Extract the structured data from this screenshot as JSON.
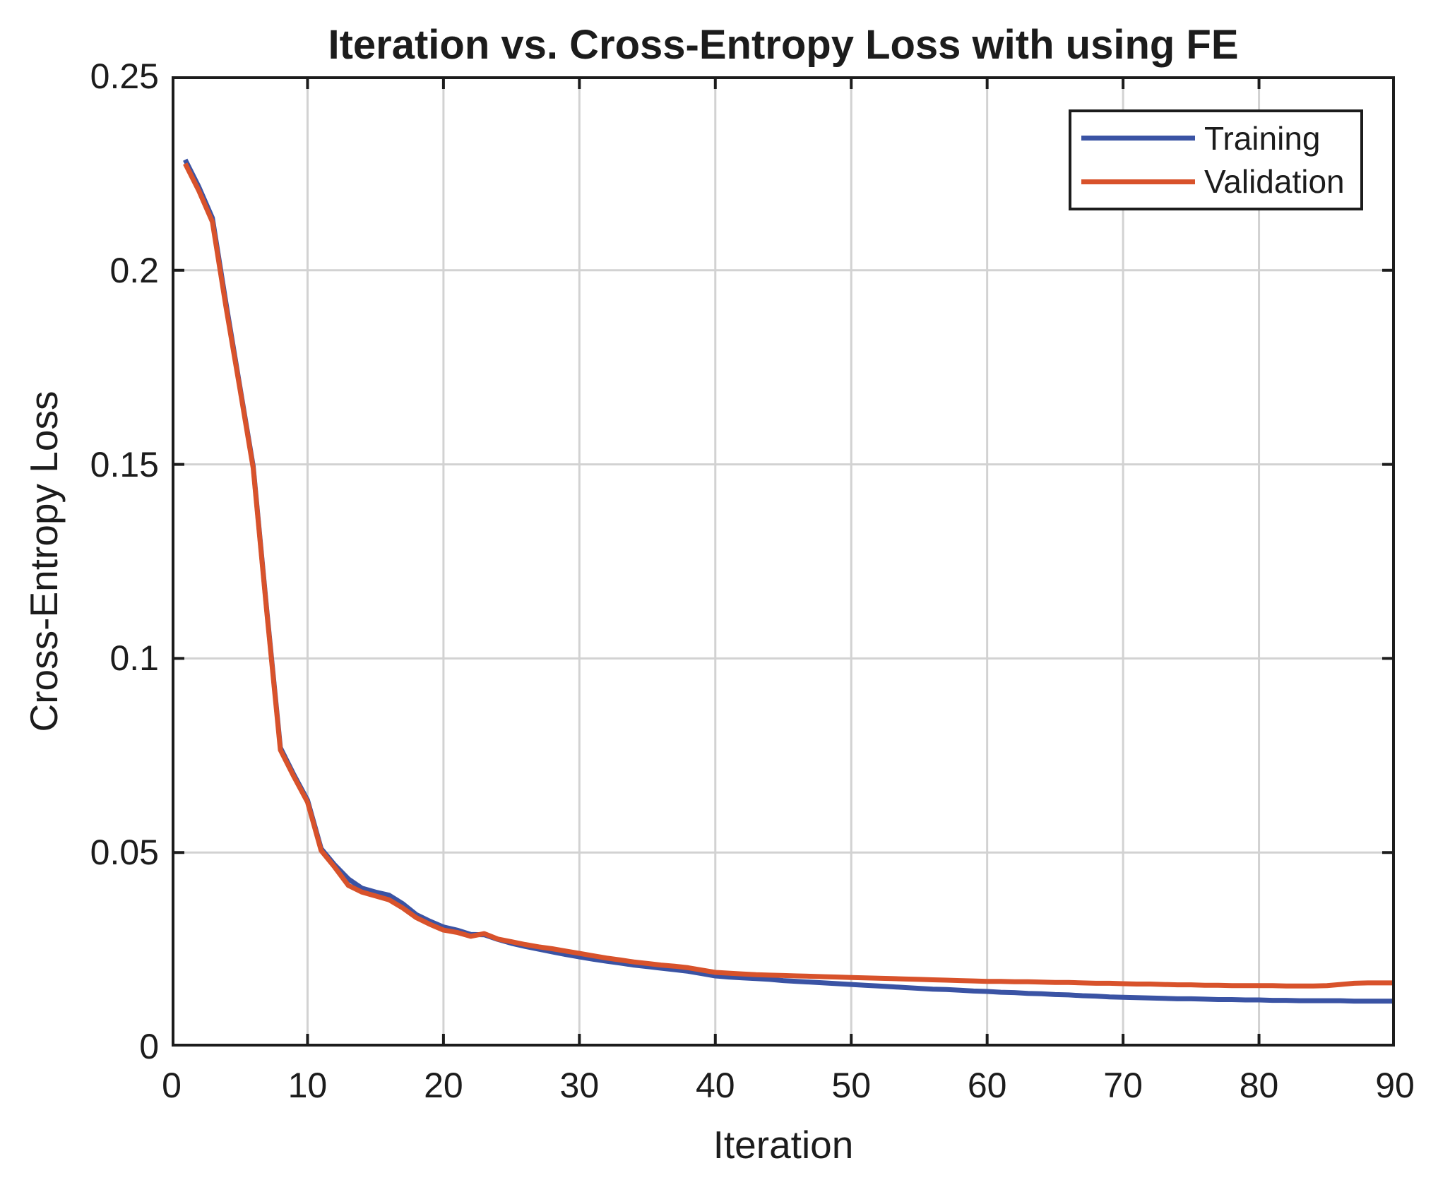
{
  "title": "Iteration vs. Cross-Entropy Loss with using FE",
  "legend": {
    "position": "top-right",
    "entries": [
      "Training",
      "Validation"
    ]
  },
  "chart_data": {
    "type": "line",
    "title": "Iteration vs. Cross-Entropy Loss with using FE",
    "xlabel": "Iteration",
    "ylabel": "Cross-Entropy Loss",
    "xlim": [
      0,
      90
    ],
    "ylim": [
      0,
      0.25
    ],
    "x_ticks": [
      0,
      10,
      20,
      30,
      40,
      50,
      60,
      70,
      80,
      90
    ],
    "x_tick_labels": [
      "0",
      "10",
      "20",
      "30",
      "40",
      "50",
      "60",
      "70",
      "80",
      "90"
    ],
    "y_ticks": [
      0,
      0.05,
      0.1,
      0.15,
      0.2,
      0.25
    ],
    "y_tick_labels": [
      "0",
      "0.05",
      "0.1",
      "0.15",
      "0.2",
      "0.25"
    ],
    "grid": true,
    "grid_color": "#d2d2d2",
    "axis_color": "#1c1c1c",
    "legend_position": "top-right",
    "series": [
      {
        "name": "Training",
        "color": "#3a53a4",
        "x": [
          1,
          2,
          3,
          4,
          5,
          6,
          7,
          8,
          9,
          10,
          11,
          12,
          13,
          14,
          15,
          16,
          17,
          18,
          19,
          20,
          21,
          22,
          23,
          24,
          25,
          26,
          27,
          28,
          29,
          30,
          31,
          32,
          33,
          34,
          35,
          36,
          37,
          38,
          39,
          40,
          41,
          42,
          43,
          44,
          45,
          46,
          47,
          48,
          49,
          50,
          51,
          52,
          53,
          54,
          55,
          56,
          57,
          58,
          59,
          60,
          61,
          62,
          63,
          64,
          65,
          66,
          67,
          68,
          69,
          70,
          71,
          72,
          73,
          74,
          75,
          76,
          77,
          78,
          79,
          80,
          81,
          82,
          83,
          84,
          85,
          86,
          87,
          88,
          89,
          90
        ],
        "y": [
          0.2285,
          0.2215,
          0.2135,
          0.1915,
          0.1705,
          0.1495,
          0.1125,
          0.077,
          0.07,
          0.0635,
          0.051,
          0.0468,
          0.0432,
          0.0408,
          0.0398,
          0.039,
          0.0368,
          0.034,
          0.0323,
          0.0308,
          0.03,
          0.0289,
          0.0288,
          0.0276,
          0.0266,
          0.0258,
          0.0251,
          0.0244,
          0.0237,
          0.0231,
          0.0225,
          0.022,
          0.0215,
          0.021,
          0.0206,
          0.0202,
          0.0198,
          0.0194,
          0.0188,
          0.0182,
          0.0179,
          0.0177,
          0.0175,
          0.0173,
          0.017,
          0.0168,
          0.0166,
          0.0164,
          0.0162,
          0.016,
          0.0158,
          0.0156,
          0.0154,
          0.0152,
          0.015,
          0.0148,
          0.0147,
          0.0145,
          0.0143,
          0.0142,
          0.014,
          0.0139,
          0.0137,
          0.0136,
          0.0134,
          0.0133,
          0.0131,
          0.013,
          0.0128,
          0.0127,
          0.0126,
          0.0125,
          0.0124,
          0.0123,
          0.0123,
          0.0122,
          0.0121,
          0.0121,
          0.012,
          0.012,
          0.0119,
          0.0119,
          0.0118,
          0.0118,
          0.0118,
          0.0118,
          0.0117,
          0.0117,
          0.0117,
          0.0117
        ]
      },
      {
        "name": "Validation",
        "color": "#d8522b",
        "x": [
          1,
          2,
          3,
          4,
          5,
          6,
          7,
          8,
          9,
          10,
          11,
          12,
          13,
          14,
          15,
          16,
          17,
          18,
          19,
          20,
          21,
          22,
          23,
          24,
          25,
          26,
          27,
          28,
          29,
          30,
          31,
          32,
          33,
          34,
          35,
          36,
          37,
          38,
          39,
          40,
          41,
          42,
          43,
          44,
          45,
          46,
          47,
          48,
          49,
          50,
          51,
          52,
          53,
          54,
          55,
          56,
          57,
          58,
          59,
          60,
          61,
          62,
          63,
          64,
          65,
          66,
          67,
          68,
          69,
          70,
          71,
          72,
          73,
          74,
          75,
          76,
          77,
          78,
          79,
          80,
          81,
          82,
          83,
          84,
          85,
          86,
          87,
          88,
          89,
          90
        ],
        "y": [
          0.2275,
          0.2205,
          0.2125,
          0.1905,
          0.17,
          0.149,
          0.112,
          0.0764,
          0.0695,
          0.063,
          0.0505,
          0.0462,
          0.0415,
          0.0398,
          0.0388,
          0.0378,
          0.0357,
          0.0332,
          0.0315,
          0.03,
          0.0294,
          0.0284,
          0.0291,
          0.0277,
          0.027,
          0.0263,
          0.0257,
          0.0252,
          0.0246,
          0.024,
          0.0234,
          0.0228,
          0.0223,
          0.0218,
          0.0214,
          0.021,
          0.0207,
          0.0203,
          0.0197,
          0.0191,
          0.0189,
          0.0187,
          0.0185,
          0.0184,
          0.0183,
          0.0182,
          0.0181,
          0.018,
          0.0179,
          0.0178,
          0.0177,
          0.0176,
          0.0175,
          0.0174,
          0.0173,
          0.0172,
          0.0171,
          0.017,
          0.0169,
          0.0168,
          0.0168,
          0.0167,
          0.0167,
          0.0166,
          0.0165,
          0.0165,
          0.0164,
          0.0163,
          0.0163,
          0.0162,
          0.0161,
          0.0161,
          0.016,
          0.0159,
          0.0159,
          0.0158,
          0.0158,
          0.0157,
          0.0157,
          0.0157,
          0.0157,
          0.0156,
          0.0156,
          0.0156,
          0.0157,
          0.016,
          0.0163,
          0.0164,
          0.0164,
          0.0164
        ]
      }
    ]
  }
}
